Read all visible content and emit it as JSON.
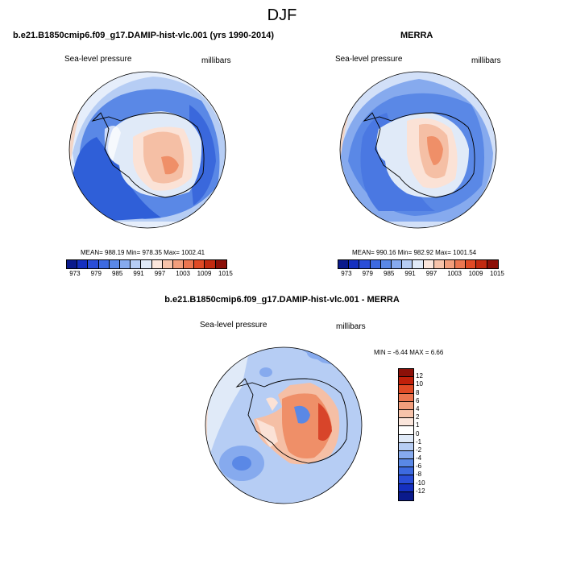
{
  "figure_title": "DJF",
  "panels": [
    {
      "title": "b.e21.B1850cmip6.f09_g17.DAMIP-hist-vlc.001 (yrs 1990-2014)",
      "variable": "Sea-level pressure",
      "units": "millibars",
      "stats": "MEAN= 988.19   Min= 978.35   Max= 1002.41"
    },
    {
      "title": "MERRA",
      "variable": "Sea-level pressure",
      "units": "millibars",
      "stats": "MEAN= 990.16   Min= 982.92   Max= 1001.54"
    },
    {
      "title": "b.e21.B1850cmip6.f09_g17.DAMIP-hist-vlc.001 - MERRA",
      "variable": "Sea-level pressure",
      "units": "millibars",
      "stats": "MIN =  -6.44  MAX =   6.66"
    }
  ],
  "colorbar_abs": {
    "colors": [
      "#0a1a8c",
      "#1530c0",
      "#2a4ed8",
      "#3d6ae0",
      "#5a88e6",
      "#86aaee",
      "#b6cdf4",
      "#e0eaf8",
      "#fbe6dc",
      "#f7c3aa",
      "#f29e7c",
      "#ec7650",
      "#e04a25",
      "#c22a10",
      "#8c1008"
    ],
    "labels": [
      "973",
      "979",
      "985",
      "991",
      "997",
      "1003",
      "1009",
      "1015"
    ]
  },
  "colorbar_diff": {
    "colors": [
      "#8c1008",
      "#c0200a",
      "#e04a25",
      "#ec7650",
      "#f29e7c",
      "#f7c3aa",
      "#fbe6dc",
      "#ffffff",
      "#e0eaf8",
      "#b6cdf4",
      "#86aaee",
      "#5a88e6",
      "#3d6ae0",
      "#2a4ed8",
      "#1530c0",
      "#0a1a8c"
    ],
    "labels": [
      "12",
      "10",
      "8",
      "6",
      "4",
      "2",
      "1",
      "0",
      "-1",
      "-2",
      "-4",
      "-6",
      "-8",
      "-10",
      "-12"
    ]
  },
  "map_colors": {
    "deep_blue": "#2f5fd8",
    "mid_blue": "#5a88e6",
    "light_blue": "#9dbcf0",
    "pale_blue": "#d2e0f8",
    "pale_red": "#fbe2d6",
    "light_red": "#f5bfa5",
    "mid_red": "#ef8f68",
    "deep_red": "#d8452a"
  }
}
